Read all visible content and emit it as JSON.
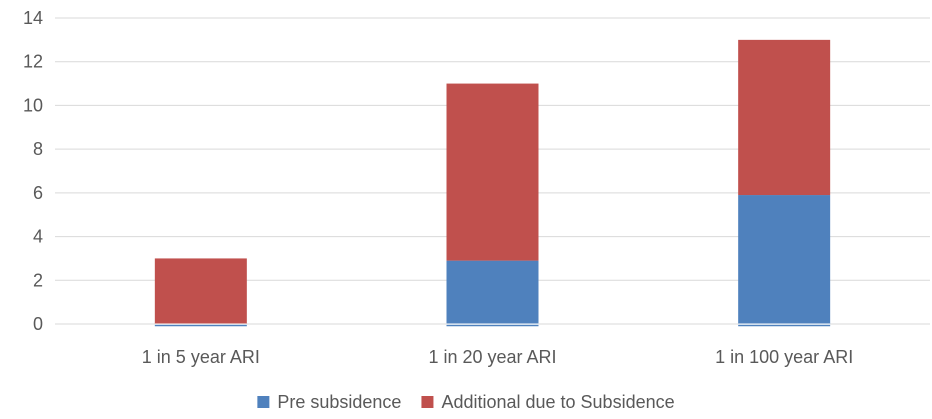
{
  "chart_data": {
    "type": "bar",
    "stacked": true,
    "categories": [
      "1 in 5 year ARI",
      "1 in 20 year ARI",
      "1 in 100 year ARI"
    ],
    "series": [
      {
        "name": "Pre subsidence",
        "values": [
          0,
          2.9,
          5.9
        ],
        "color": "#4f81bd"
      },
      {
        "name": "Additional due to Subsidence",
        "values": [
          3,
          8.1,
          7.1
        ],
        "color": "#c0504d"
      }
    ],
    "yticks": [
      "0",
      "2",
      "4",
      "6",
      "8",
      "10",
      "12",
      "14"
    ],
    "ylim": [
      0,
      14
    ],
    "grid": true,
    "legend_position": "bottom-center",
    "title": "",
    "xlabel": "",
    "ylabel": ""
  }
}
